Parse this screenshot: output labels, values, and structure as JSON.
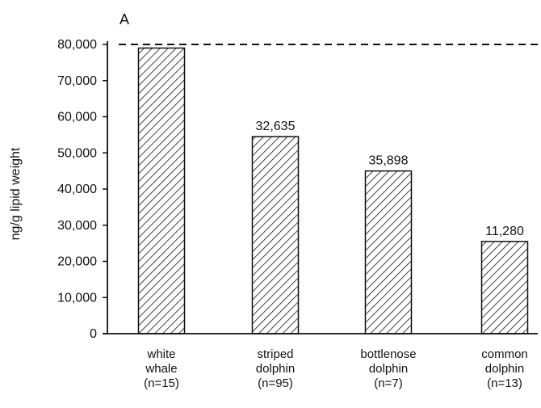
{
  "chart_data": {
    "type": "bar",
    "panel_label": "A",
    "title": "",
    "xlabel": "",
    "ylabel": "ng/g lipid weight",
    "ylim": [
      0,
      80000
    ],
    "yticks": [
      0,
      10000,
      20000,
      30000,
      40000,
      50000,
      60000,
      70000,
      80000
    ],
    "ytick_labels": [
      "0",
      "10,000",
      "20,000",
      "30,000",
      "40,000",
      "50,000",
      "60,000",
      "70,000",
      "80,000"
    ],
    "categories": [
      [
        "white",
        "whale",
        "(n=15)"
      ],
      [
        "striped",
        "dolphin",
        "(n=95)"
      ],
      [
        "bottlenose",
        "dolphin",
        "(n=7)"
      ],
      [
        "common",
        "dolphin",
        "(n=13)"
      ]
    ],
    "values": [
      79000,
      54500,
      45000,
      25500
    ],
    "data_labels": [
      "",
      "32,635",
      "35,898",
      "11,280"
    ],
    "reference_line": {
      "value": 80000,
      "style": "dashed"
    },
    "bar_fill": "diagonal-hatch",
    "colors": {
      "ink": "#111111",
      "bar_background": "#ffffff"
    }
  }
}
